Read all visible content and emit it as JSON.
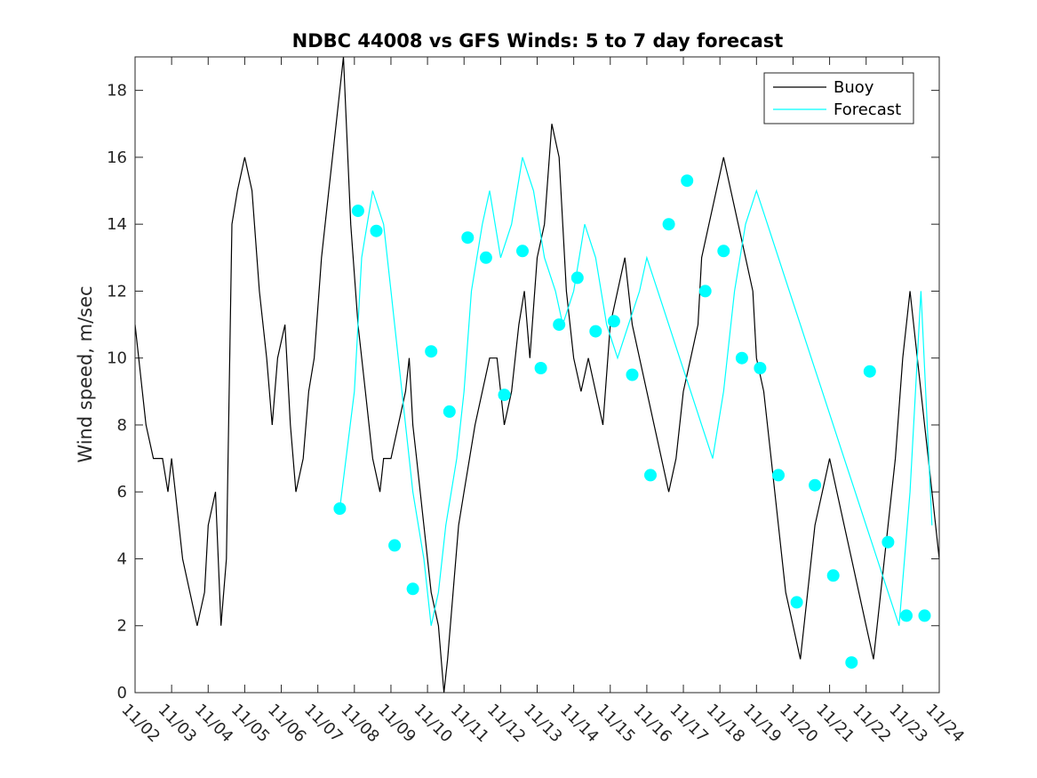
{
  "chart_data": {
    "type": "line",
    "title": "NDBC 44008 vs GFS Winds: 5 to 7 day forecast",
    "xlabel": "",
    "ylabel": "Wind speed, m/sec",
    "x_unit": "days since 11/02",
    "xlim": [
      0,
      22
    ],
    "ylim": [
      0,
      19
    ],
    "yticks": [
      0,
      2,
      4,
      6,
      8,
      10,
      12,
      14,
      16,
      18
    ],
    "xtick_labels": [
      "11/02",
      "11/03",
      "11/04",
      "11/05",
      "11/06",
      "11/07",
      "11/08",
      "11/09",
      "11/10",
      "11/11",
      "11/12",
      "11/13",
      "11/14",
      "11/15",
      "11/16",
      "11/17",
      "11/18",
      "11/19",
      "11/20",
      "11/21",
      "11/22",
      "11/23",
      "11/24"
    ],
    "colors": {
      "buoy": "#000000",
      "forecast": "#00ffff",
      "axis": "#262626"
    },
    "legend": {
      "position": "top-right",
      "entries": [
        "Buoy",
        "Forecast"
      ]
    },
    "series": [
      {
        "name": "Buoy",
        "x": [
          0,
          0.1,
          0.2,
          0.3,
          0.5,
          0.75,
          0.9,
          1.0,
          1.1,
          1.3,
          1.5,
          1.7,
          1.9,
          2.0,
          2.2,
          2.35,
          2.5,
          2.65,
          2.8,
          3.0,
          3.2,
          3.4,
          3.6,
          3.75,
          3.9,
          4.1,
          4.25,
          4.4,
          4.6,
          4.75,
          4.9,
          5.1,
          5.3,
          5.5,
          5.7,
          5.9,
          6.1,
          6.3,
          6.5,
          6.7,
          6.8,
          7.0,
          7.2,
          7.4,
          7.5,
          7.6,
          7.7,
          7.9,
          8.1,
          8.3,
          8.45,
          8.55,
          8.7,
          8.85,
          9.0,
          9.15,
          9.3,
          9.5,
          9.7,
          9.9,
          10.1,
          10.3,
          10.5,
          10.65,
          10.8,
          11.0,
          11.2,
          11.4,
          11.6,
          11.8,
          12.0,
          12.2,
          12.4,
          12.6,
          12.8,
          13.0,
          13.2,
          13.4,
          13.6,
          13.8,
          14.0,
          14.2,
          14.4,
          14.6,
          14.8,
          15.0,
          15.2,
          15.4,
          15.5,
          15.7,
          15.9,
          16.1,
          16.3,
          16.5,
          16.7,
          16.9,
          17.0,
          17.2,
          17.4,
          17.6,
          17.8,
          18.0,
          18.2,
          18.4,
          18.6,
          18.8,
          19.0,
          19.2,
          19.4,
          19.6,
          19.8,
          20.0,
          20.2,
          20.4,
          20.6,
          20.8,
          21.0,
          21.2,
          21.4,
          21.6,
          21.8,
          22.0
        ],
        "values": [
          11,
          10,
          9,
          8,
          7,
          7,
          6,
          7,
          6,
          4,
          3,
          2,
          3,
          5,
          6,
          2,
          4,
          14,
          15,
          16,
          15,
          12,
          10,
          8,
          10,
          11,
          8,
          6,
          7,
          9,
          10,
          13,
          15,
          17,
          19,
          14,
          11,
          9,
          7,
          6,
          7,
          7,
          8,
          9,
          10,
          8,
          7,
          5,
          3,
          2,
          0,
          1,
          3,
          5,
          6,
          7,
          8,
          9,
          10,
          10,
          8,
          9,
          11,
          12,
          10,
          13,
          14,
          17,
          16,
          12,
          10,
          9,
          10,
          9,
          8,
          11,
          12,
          13,
          11,
          10,
          9,
          8,
          7,
          6,
          7,
          9,
          10,
          11,
          13,
          14,
          15,
          16,
          15,
          14,
          13,
          12,
          10,
          9,
          7,
          5,
          3,
          2,
          1,
          3,
          5,
          6,
          7,
          6,
          5,
          4,
          3,
          2,
          1,
          3,
          5,
          7,
          10,
          12,
          10,
          8,
          6,
          4
        ]
      },
      {
        "name": "Forecast",
        "x": [
          5.6,
          6.0,
          6.2,
          6.5,
          6.8,
          7.0,
          7.3,
          7.6,
          7.9,
          8.1,
          8.3,
          8.5,
          8.8,
          9.0,
          9.2,
          9.5,
          9.7,
          10.0,
          10.3,
          10.6,
          10.9,
          11.2,
          11.5,
          11.7,
          12.0,
          12.3,
          12.6,
          12.9,
          13.2,
          13.5,
          13.8,
          14.0,
          14.3,
          14.6,
          14.9,
          15.2,
          15.5,
          15.8,
          16.1,
          16.4,
          16.7,
          17.0,
          17.3,
          17.6,
          17.9,
          18.2,
          18.5,
          18.8,
          19.1,
          19.4,
          19.7,
          20.0,
          20.3,
          20.6,
          20.9,
          21.2,
          21.5,
          21.8
        ],
        "values": [
          5.5,
          9,
          13,
          15,
          14,
          12,
          9,
          6,
          4,
          2,
          3,
          5,
          7,
          9,
          12,
          14,
          15,
          13,
          14,
          16,
          15,
          13,
          12,
          11,
          12,
          14,
          13,
          11,
          10,
          11,
          12,
          13,
          12,
          11,
          10,
          9,
          8,
          7,
          9,
          12,
          14,
          15,
          14,
          13,
          12,
          11,
          10,
          9,
          8,
          7,
          6,
          5,
          4,
          3,
          2,
          6,
          12,
          5
        ],
        "mark": "line"
      },
      {
        "name": "Forecast",
        "mark": "markers",
        "x": [
          5.6,
          6.1,
          6.6,
          7.1,
          7.6,
          8.1,
          8.6,
          9.1,
          9.6,
          10.1,
          10.6,
          11.1,
          11.6,
          12.1,
          12.6,
          13.1,
          13.6,
          14.1,
          14.6,
          15.1,
          15.6,
          16.1,
          16.6,
          17.1,
          17.6,
          18.1,
          18.6,
          19.1,
          19.6,
          20.1,
          20.6,
          21.1,
          21.6
        ],
        "values": [
          5.5,
          14.4,
          13.8,
          4.4,
          3.1,
          10.2,
          8.4,
          13.6,
          13.0,
          8.9,
          13.2,
          9.7,
          11.0,
          12.4,
          10.8,
          11.1,
          9.5,
          6.5,
          14.0,
          15.3,
          12.0,
          13.2,
          10.0,
          9.7,
          6.5,
          2.7,
          6.2,
          3.5,
          0.9,
          9.6,
          4.5,
          2.3,
          2.3
        ]
      }
    ]
  }
}
